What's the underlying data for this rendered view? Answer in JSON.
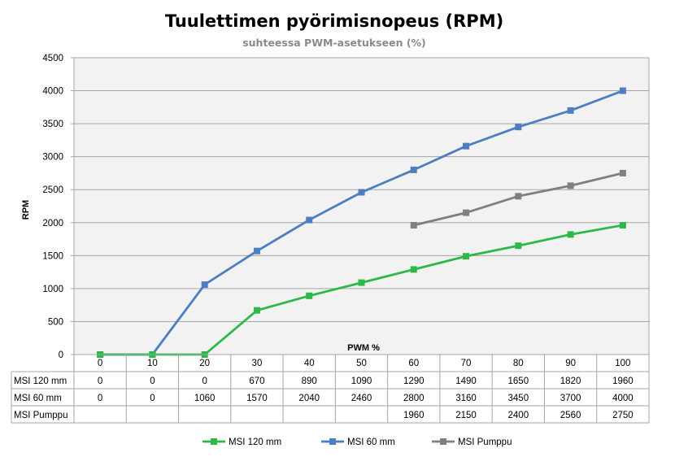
{
  "chart_data": {
    "type": "line",
    "title": "Tuulettimen pyörimisnopeus (RPM)",
    "subtitle": "suhteessa PWM-asetukseen (%)",
    "xlabel": "PWM %",
    "ylabel": "RPM",
    "categories": [
      "0",
      "10",
      "20",
      "30",
      "40",
      "50",
      "60",
      "70",
      "80",
      "90",
      "100"
    ],
    "ylim": [
      0,
      4500
    ],
    "yticks": [
      "0",
      "500",
      "1000",
      "1500",
      "2000",
      "2500",
      "3000",
      "3500",
      "4000",
      "4500"
    ],
    "grid": true,
    "legend": "bottom",
    "data_table": true,
    "series": [
      {
        "name": "MSI 120 mm",
        "color": "#2eb84a",
        "values": [
          0,
          0,
          0,
          670,
          890,
          1090,
          1290,
          1490,
          1650,
          1820,
          1960
        ]
      },
      {
        "name": "MSI 60 mm",
        "color": "#4d7ebf",
        "values": [
          0,
          0,
          1060,
          1570,
          2040,
          2460,
          2800,
          3160,
          3450,
          3700,
          4000
        ]
      },
      {
        "name": "MSI Pumppu",
        "color": "#7f7f7f",
        "values": [
          null,
          null,
          null,
          null,
          null,
          null,
          1960,
          2150,
          2400,
          2560,
          2750
        ]
      }
    ]
  }
}
